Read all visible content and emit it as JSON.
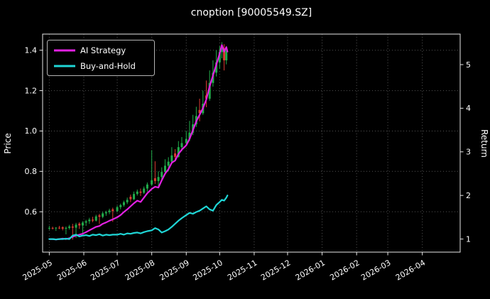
{
  "title": "cnoption [90005549.SZ]",
  "chart_data": {
    "type": "line+candlestick",
    "title": "cnoption [90005549.SZ]",
    "xlabel": "",
    "ylabel_left": "Price",
    "ylabel_right": "Return",
    "background_color": "#000000",
    "text_color": "#ffffff",
    "grid": "dotted",
    "legend_position": "upper left",
    "x_tick_labels": [
      "2025-05",
      "2025-06",
      "2025-07",
      "2025-08",
      "2025-09",
      "2025-10",
      "2025-11",
      "2025-12",
      "2026-01",
      "2026-02",
      "2026-03",
      "2026-04"
    ],
    "month_tick_days": [
      0,
      31,
      61,
      92,
      123,
      153,
      184,
      214,
      245,
      276,
      304,
      335
    ],
    "x_domain_days": [
      -6,
      369
    ],
    "price_axis": {
      "ticks": [
        0.6,
        0.8,
        1.0,
        1.2,
        1.4
      ],
      "tick_labels": [
        "0.6",
        "0.8",
        "1.0",
        "1.2",
        "1.4"
      ],
      "domain": [
        0.4,
        1.48
      ]
    },
    "return_axis": {
      "ticks": [
        1,
        2,
        3,
        4,
        5
      ],
      "tick_labels": [
        "1",
        "2",
        "3",
        "4",
        "5"
      ],
      "domain": [
        0.7,
        5.7
      ]
    },
    "series": [
      {
        "name": "AI Strategy",
        "color": "#e321e3",
        "axis": "return",
        "x": [
          0,
          3,
          6,
          9,
          12,
          15,
          18,
          21,
          24,
          27,
          30,
          33,
          36,
          39,
          42,
          45,
          48,
          51,
          54,
          57,
          61,
          64,
          67,
          70,
          73,
          76,
          79,
          82,
          85,
          88,
          92,
          95,
          98,
          101,
          104,
          107,
          110,
          113,
          116,
          119,
          123,
          126,
          129,
          132,
          135,
          138,
          141,
          144,
          147,
          150,
          153,
          155,
          157,
          159,
          160
        ],
        "y": [
          1.0,
          1.0,
          0.99,
          1.0,
          1.01,
          1.0,
          1.02,
          1.05,
          1.08,
          1.1,
          1.12,
          1.16,
          1.2,
          1.24,
          1.28,
          1.3,
          1.35,
          1.38,
          1.42,
          1.45,
          1.5,
          1.55,
          1.62,
          1.68,
          1.75,
          1.82,
          1.88,
          1.85,
          1.95,
          2.05,
          2.15,
          2.2,
          2.18,
          2.35,
          2.5,
          2.6,
          2.75,
          2.8,
          2.95,
          3.05,
          3.15,
          3.3,
          3.5,
          3.7,
          3.85,
          4.0,
          4.2,
          4.5,
          4.75,
          5.0,
          5.25,
          5.45,
          5.3,
          5.4,
          5.3
        ]
      },
      {
        "name": "Buy-and-Hold",
        "color": "#1fd6d6",
        "axis": "return",
        "x": [
          0,
          3,
          6,
          9,
          12,
          15,
          18,
          21,
          24,
          27,
          30,
          33,
          36,
          39,
          42,
          45,
          48,
          51,
          54,
          57,
          61,
          64,
          67,
          70,
          73,
          76,
          79,
          82,
          85,
          88,
          92,
          95,
          98,
          101,
          104,
          107,
          110,
          113,
          116,
          119,
          123,
          126,
          129,
          132,
          135,
          138,
          141,
          144,
          147,
          150,
          153,
          155,
          157,
          159,
          160
        ],
        "y": [
          1.0,
          1.0,
          0.99,
          1.0,
          1.0,
          1.01,
          1.0,
          1.08,
          1.1,
          1.06,
          1.08,
          1.09,
          1.07,
          1.1,
          1.09,
          1.11,
          1.08,
          1.1,
          1.09,
          1.1,
          1.1,
          1.12,
          1.1,
          1.13,
          1.12,
          1.14,
          1.15,
          1.13,
          1.16,
          1.18,
          1.2,
          1.25,
          1.22,
          1.15,
          1.18,
          1.22,
          1.28,
          1.35,
          1.42,
          1.48,
          1.55,
          1.6,
          1.58,
          1.62,
          1.65,
          1.7,
          1.75,
          1.68,
          1.65,
          1.78,
          1.85,
          1.9,
          1.88,
          1.95,
          2.0
        ]
      }
    ],
    "candles": {
      "axis": "price",
      "up_color": "#21ad4b",
      "down_color": "#dc3b32",
      "columns": [
        "day",
        "open",
        "high",
        "low",
        "close"
      ],
      "data": [
        [
          0,
          0.52,
          0.53,
          0.51,
          0.52
        ],
        [
          3,
          0.52,
          0.526,
          0.512,
          0.518
        ],
        [
          6,
          0.518,
          0.524,
          0.505,
          0.521
        ],
        [
          9,
          0.521,
          0.53,
          0.514,
          0.519
        ],
        [
          12,
          0.523,
          0.528,
          0.508,
          0.516
        ],
        [
          15,
          0.516,
          0.527,
          0.488,
          0.52
        ],
        [
          18,
          0.52,
          0.535,
          0.512,
          0.527
        ],
        [
          21,
          0.527,
          0.54,
          0.462,
          0.521
        ],
        [
          24,
          0.521,
          0.545,
          0.47,
          0.536
        ],
        [
          27,
          0.541,
          0.548,
          0.515,
          0.532
        ],
        [
          30,
          0.532,
          0.553,
          0.492,
          0.546
        ],
        [
          33,
          0.546,
          0.56,
          0.53,
          0.553
        ],
        [
          36,
          0.553,
          0.57,
          0.54,
          0.561
        ],
        [
          39,
          0.561,
          0.575,
          0.548,
          0.556
        ],
        [
          42,
          0.556,
          0.585,
          0.552,
          0.577
        ],
        [
          45,
          0.582,
          0.59,
          0.54,
          0.575
        ],
        [
          48,
          0.575,
          0.6,
          0.568,
          0.592
        ],
        [
          51,
          0.592,
          0.605,
          0.58,
          0.598
        ],
        [
          54,
          0.598,
          0.615,
          0.588,
          0.606
        ],
        [
          57,
          0.612,
          0.62,
          0.55,
          0.603
        ],
        [
          61,
          0.603,
          0.63,
          0.598,
          0.623
        ],
        [
          64,
          0.623,
          0.64,
          0.612,
          0.633
        ],
        [
          67,
          0.633,
          0.655,
          0.625,
          0.647
        ],
        [
          70,
          0.647,
          0.67,
          0.638,
          0.659
        ],
        [
          73,
          0.674,
          0.685,
          0.648,
          0.662
        ],
        [
          76,
          0.662,
          0.7,
          0.658,
          0.688
        ],
        [
          79,
          0.688,
          0.71,
          0.68,
          0.7
        ],
        [
          82,
          0.7,
          0.715,
          0.678,
          0.694
        ],
        [
          85,
          0.694,
          0.725,
          0.688,
          0.715
        ],
        [
          88,
          0.715,
          0.745,
          0.7,
          0.735
        ],
        [
          92,
          0.735,
          0.905,
          0.728,
          0.756
        ],
        [
          95,
          0.766,
          0.85,
          0.738,
          0.752
        ],
        [
          98,
          0.752,
          0.8,
          0.718,
          0.772
        ],
        [
          101,
          0.772,
          0.82,
          0.75,
          0.797
        ],
        [
          104,
          0.797,
          0.86,
          0.788,
          0.828
        ],
        [
          107,
          0.828,
          0.87,
          0.8,
          0.848
        ],
        [
          110,
          0.848,
          0.92,
          0.838,
          0.879
        ],
        [
          113,
          0.889,
          0.91,
          0.855,
          0.872
        ],
        [
          116,
          0.872,
          0.95,
          0.868,
          0.92
        ],
        [
          119,
          0.92,
          0.97,
          0.9,
          0.94
        ],
        [
          123,
          0.94,
          1.0,
          0.928,
          0.961
        ],
        [
          126,
          0.961,
          1.05,
          0.95,
          0.992
        ],
        [
          129,
          0.992,
          1.08,
          0.98,
          1.033
        ],
        [
          132,
          1.033,
          1.12,
          1.02,
          1.074
        ],
        [
          135,
          1.104,
          1.16,
          1.048,
          1.088
        ],
        [
          138,
          1.088,
          1.2,
          1.08,
          1.135
        ],
        [
          141,
          1.176,
          1.25,
          1.118,
          1.16
        ],
        [
          144,
          1.16,
          1.3,
          1.15,
          1.238
        ],
        [
          147,
          1.238,
          1.35,
          1.22,
          1.289
        ],
        [
          150,
          1.289,
          1.4,
          1.27,
          1.34
        ],
        [
          153,
          1.34,
          1.42,
          1.31,
          1.391
        ],
        [
          155,
          1.391,
          1.44,
          1.36,
          1.41
        ],
        [
          157,
          1.41,
          1.43,
          1.3,
          1.35
        ],
        [
          159,
          1.35,
          1.42,
          1.33,
          1.4
        ]
      ]
    }
  }
}
